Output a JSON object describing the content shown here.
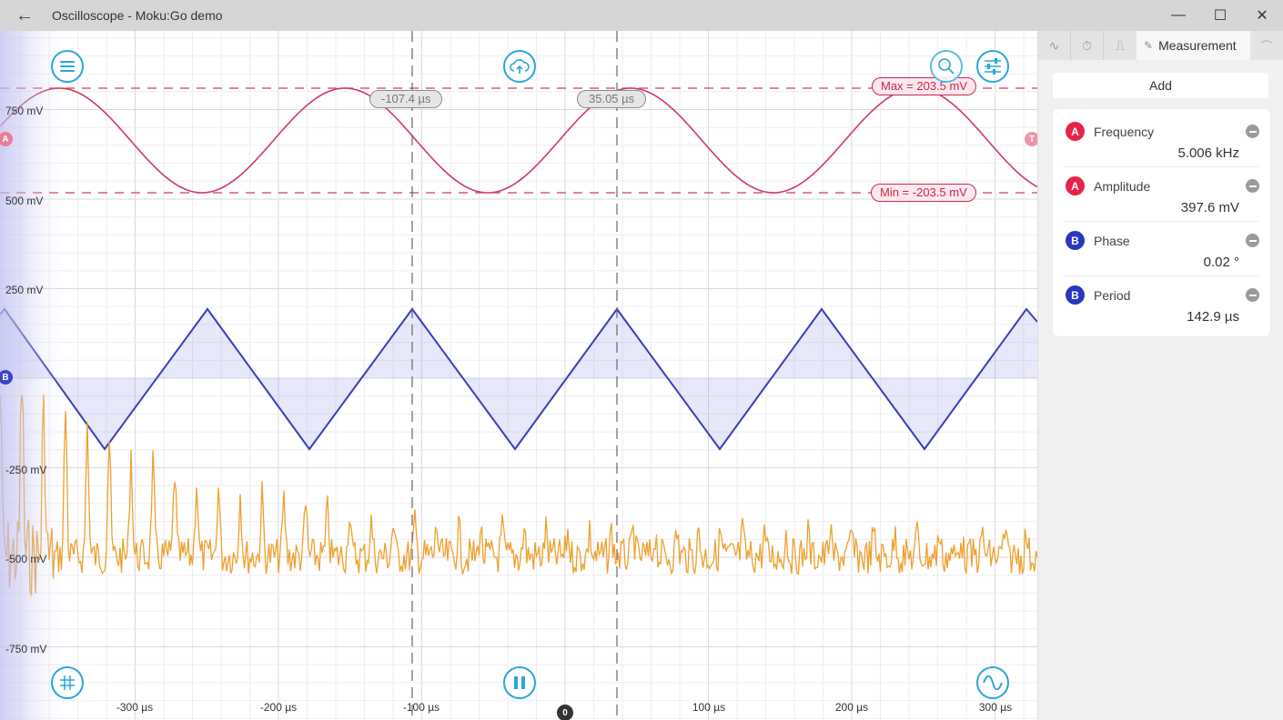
{
  "window": {
    "title": "Oscilloscope - Moku:Go demo",
    "back_icon": "←",
    "minimize_icon": "—",
    "maximize_icon": "☐",
    "close_icon": "✕"
  },
  "plot": {
    "y_axis_labels": [
      "750 mV",
      "500 mV",
      "250 mV",
      "-250 mV",
      "-500 mV",
      "-750 mV"
    ],
    "x_axis_labels": [
      "-300 µs",
      "-200 µs",
      "-100 µs",
      "100 µs",
      "200 µs",
      "300 µs"
    ],
    "trigger_position_label": "0",
    "cursors": {
      "cursor1": "-107.4 µs",
      "cursor2": "35.05 µs"
    },
    "levels": {
      "max": "Max = 203.5 mV",
      "min": "Min = -203.5 mV"
    },
    "channel_markers": {
      "a": "A",
      "b": "B",
      "trigger": "T"
    },
    "colors": {
      "channel_a": "#d23a5e",
      "channel_b": "#3a3fb8",
      "math": "#eea02e",
      "accent": "#2aa5dc",
      "cursor": "#666666"
    },
    "buttons": {
      "menu": "menu",
      "cloud_upload": "upload",
      "zoom": "zoom",
      "settings": "settings",
      "grid": "grid",
      "pause": "pause",
      "waveform": "waveform"
    }
  },
  "sidebar": {
    "tabs": [
      {
        "icon": "∿",
        "name": "waveform-tab"
      },
      {
        "icon": "⏱",
        "name": "timebase-tab"
      },
      {
        "icon": "⎍",
        "name": "trigger-tab"
      }
    ],
    "active_tab": {
      "icon": "✎",
      "label": "Measurement"
    },
    "right_tab_icon": "⌒",
    "add_label": "Add",
    "measurements": [
      {
        "channel": "A",
        "name": "Frequency",
        "value": "5.006 kHz",
        "color": "#e8234a"
      },
      {
        "channel": "A",
        "name": "Amplitude",
        "value": "397.6 mV",
        "color": "#e8234a"
      },
      {
        "channel": "B",
        "name": "Phase",
        "value": "0.02 °",
        "color": "#2a35c0"
      },
      {
        "channel": "B",
        "name": "Period",
        "value": "142.9 µs",
        "color": "#2a35c0"
      }
    ]
  }
}
